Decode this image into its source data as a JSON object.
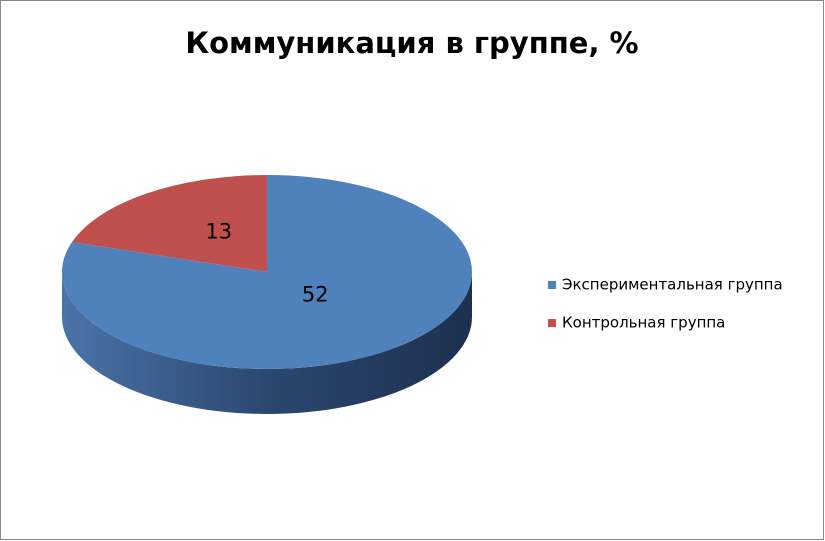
{
  "chart_data": {
    "type": "pie",
    "title": "Коммуникация в группе, %",
    "categories": [
      "Экспериментальная группа",
      "Контрольная группа"
    ],
    "values": [
      52,
      13
    ],
    "colors": [
      "#4f81bd",
      "#c0504d"
    ],
    "legend": "right"
  }
}
